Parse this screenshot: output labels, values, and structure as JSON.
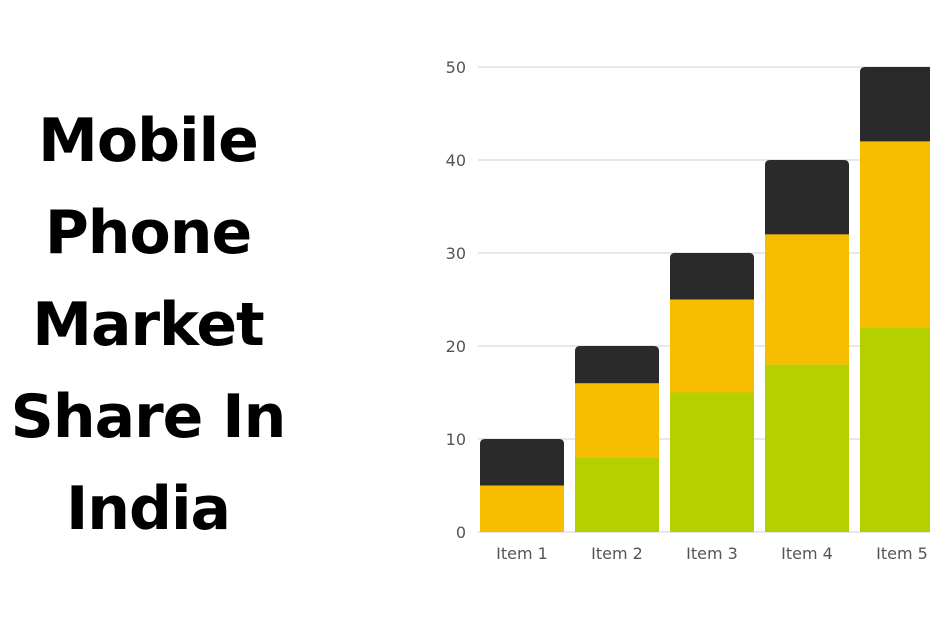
{
  "title_lines": [
    "Mobile",
    "Phone",
    "Market",
    "Share In",
    "India"
  ],
  "colors": {
    "series_bottom": "#b5d000",
    "series_middle": "#f7bd00",
    "series_top": "#2a2a2a",
    "grid": "#d0d0d0",
    "title": "#000000"
  },
  "chart_data": {
    "type": "bar",
    "stacked": true,
    "title": "",
    "xlabel": "",
    "ylabel": "",
    "categories": [
      "Item 1",
      "Item 2",
      "Item 3",
      "Item 4",
      "Item 5"
    ],
    "series": [
      {
        "values": [
          0,
          8,
          15,
          18,
          22
        ],
        "color": "#b5d000"
      },
      {
        "values": [
          5,
          8,
          10,
          14,
          20
        ],
        "color": "#f7bd00"
      },
      {
        "values": [
          5,
          4,
          5,
          8,
          8
        ],
        "color": "#2a2a2a"
      }
    ],
    "ylim": [
      0,
      50
    ],
    "yticks": [
      0,
      10,
      20,
      30,
      40,
      50
    ],
    "grid": true,
    "legend": "none"
  }
}
